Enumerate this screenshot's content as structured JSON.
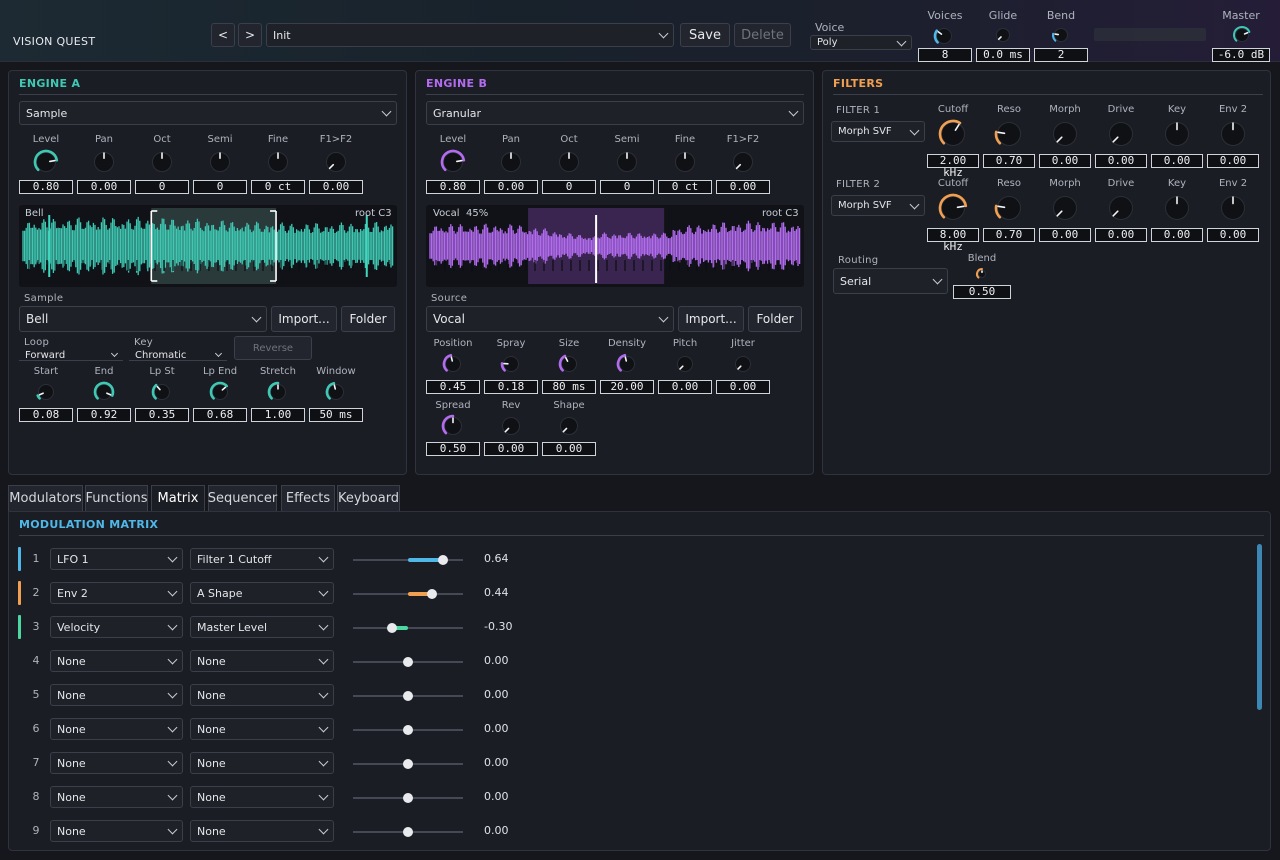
{
  "app": {
    "title": "VISION QUEST"
  },
  "preset": {
    "name": "Init",
    "save": "Save",
    "delete": "Delete"
  },
  "voice": {
    "label": "Voice",
    "value": "Poly"
  },
  "header": {
    "voices": {
      "label": "Voices",
      "value": "8"
    },
    "glide": {
      "label": "Glide",
      "value": "0.0 ms"
    },
    "bend": {
      "label": "Bend",
      "value": "2"
    },
    "master": {
      "label": "Master",
      "value": "-6.0 dB"
    }
  },
  "colors": {
    "teal": "#3fc9b4",
    "purple": "#b36cf0",
    "orange": "#f0a050",
    "blue": "#4fb8e8",
    "green": "#4ad9a0"
  },
  "engine_a": {
    "title": "ENGINE A",
    "type": "Sample",
    "knobs": [
      {
        "label": "Level",
        "value": "0.80",
        "level": 0.8
      },
      {
        "label": "Pan",
        "value": "0.00",
        "level": 0.5
      },
      {
        "label": "Oct",
        "value": "0",
        "level": 0.5
      },
      {
        "label": "Semi",
        "value": "0",
        "level": 0.5
      },
      {
        "label": "Fine",
        "value": "0 ct",
        "level": 0.5
      },
      {
        "label": "F1>F2",
        "value": "0.00",
        "level": 0.0
      }
    ],
    "wave_name": "Bell",
    "wave_root": "root C3",
    "sample_label": "Sample",
    "sample_value": "Bell",
    "import": "Import...",
    "folder": "Folder",
    "loop_label": "Loop",
    "loop_value": "Forward",
    "key_label": "Key",
    "key_value": "Chromatic",
    "reverse": "Reverse",
    "knobs2": [
      {
        "label": "Start",
        "value": "0.08",
        "level": 0.08
      },
      {
        "label": "End",
        "value": "0.92",
        "level": 0.92
      },
      {
        "label": "Lp St",
        "value": "0.35",
        "level": 0.35
      },
      {
        "label": "Lp End",
        "value": "0.68",
        "level": 0.68
      },
      {
        "label": "Stretch",
        "value": "1.00",
        "level": 0.5
      },
      {
        "label": "Window",
        "value": "50 ms",
        "level": 0.45
      }
    ]
  },
  "engine_b": {
    "title": "ENGINE B",
    "type": "Granular",
    "knobs": [
      {
        "label": "Level",
        "value": "0.80",
        "level": 0.8
      },
      {
        "label": "Pan",
        "value": "0.00",
        "level": 0.5
      },
      {
        "label": "Oct",
        "value": "0",
        "level": 0.5
      },
      {
        "label": "Semi",
        "value": "0",
        "level": 0.5
      },
      {
        "label": "Fine",
        "value": "0 ct",
        "level": 0.5
      },
      {
        "label": "F1>F2",
        "value": "0.00",
        "level": 0.0
      }
    ],
    "wave_name": "Vocal",
    "wave_pos": "45%",
    "wave_root": "root C3",
    "source_label": "Source",
    "source_value": "Vocal",
    "import": "Import...",
    "folder": "Folder",
    "knobs2": [
      {
        "label": "Position",
        "value": "0.45",
        "level": 0.45
      },
      {
        "label": "Spray",
        "value": "0.18",
        "level": 0.18
      },
      {
        "label": "Size",
        "value": "80 ms",
        "level": 0.4
      },
      {
        "label": "Density",
        "value": "20.00",
        "level": 0.45
      },
      {
        "label": "Pitch",
        "value": "0.00",
        "level": 0.0
      },
      {
        "label": "Jitter",
        "value": "0.00",
        "level": 0.0
      }
    ],
    "knobs3": [
      {
        "label": "Spread",
        "value": "0.50",
        "level": 0.5
      },
      {
        "label": "Rev",
        "value": "0.00",
        "level": 0.0
      },
      {
        "label": "Shape",
        "value": "0.00",
        "level": 0.0
      }
    ]
  },
  "filters": {
    "title": "FILTERS",
    "f1": {
      "label": "FILTER 1",
      "type": "Morph SVF",
      "knobs": [
        {
          "label": "Cutoff",
          "value": "2.00 kHz",
          "level": 0.62
        },
        {
          "label": "Reso",
          "value": "0.70",
          "level": 0.2
        },
        {
          "label": "Morph",
          "value": "0.00",
          "level": 0.0
        },
        {
          "label": "Drive",
          "value": "0.00",
          "level": 0.0
        },
        {
          "label": "Key",
          "value": "0.00",
          "level": 0.5
        },
        {
          "label": "Env 2",
          "value": "0.00",
          "level": 0.5
        }
      ]
    },
    "f2": {
      "label": "FILTER 2",
      "type": "Morph SVF",
      "knobs": [
        {
          "label": "Cutoff",
          "value": "8.00 kHz",
          "level": 0.8
        },
        {
          "label": "Reso",
          "value": "0.70",
          "level": 0.2
        },
        {
          "label": "Morph",
          "value": "0.00",
          "level": 0.0
        },
        {
          "label": "Drive",
          "value": "0.00",
          "level": 0.0
        },
        {
          "label": "Key",
          "value": "0.00",
          "level": 0.5
        },
        {
          "label": "Env 2",
          "value": "0.00",
          "level": 0.5
        }
      ]
    },
    "routing_label": "Routing",
    "routing_value": "Serial",
    "blend": {
      "label": "Blend",
      "value": "0.50",
      "level": 0.5
    }
  },
  "tabs": [
    {
      "label": "Modulators"
    },
    {
      "label": "Functions"
    },
    {
      "label": "Matrix"
    },
    {
      "label": "Sequencer"
    },
    {
      "label": "Effects"
    },
    {
      "label": "Keyboard"
    }
  ],
  "matrix": {
    "title": "MODULATION MATRIX",
    "rows": [
      {
        "num": "1",
        "source": "LFO 1",
        "dest": "Filter 1 Cutoff",
        "amount": 0.64,
        "value": "0.64",
        "color": "#4fb8e8"
      },
      {
        "num": "2",
        "source": "Env 2",
        "dest": "A Shape",
        "amount": 0.44,
        "value": "0.44",
        "color": "#f0a050"
      },
      {
        "num": "3",
        "source": "Velocity",
        "dest": "Master Level",
        "amount": -0.3,
        "value": "-0.30",
        "color": "#4ad9a0"
      },
      {
        "num": "4",
        "source": "None",
        "dest": "None",
        "amount": 0,
        "value": "0.00",
        "color": ""
      },
      {
        "num": "5",
        "source": "None",
        "dest": "None",
        "amount": 0,
        "value": "0.00",
        "color": ""
      },
      {
        "num": "6",
        "source": "None",
        "dest": "None",
        "amount": 0,
        "value": "0.00",
        "color": ""
      },
      {
        "num": "7",
        "source": "None",
        "dest": "None",
        "amount": 0,
        "value": "0.00",
        "color": ""
      },
      {
        "num": "8",
        "source": "None",
        "dest": "None",
        "amount": 0,
        "value": "0.00",
        "color": ""
      },
      {
        "num": "9",
        "source": "None",
        "dest": "None",
        "amount": 0,
        "value": "0.00",
        "color": ""
      }
    ]
  }
}
